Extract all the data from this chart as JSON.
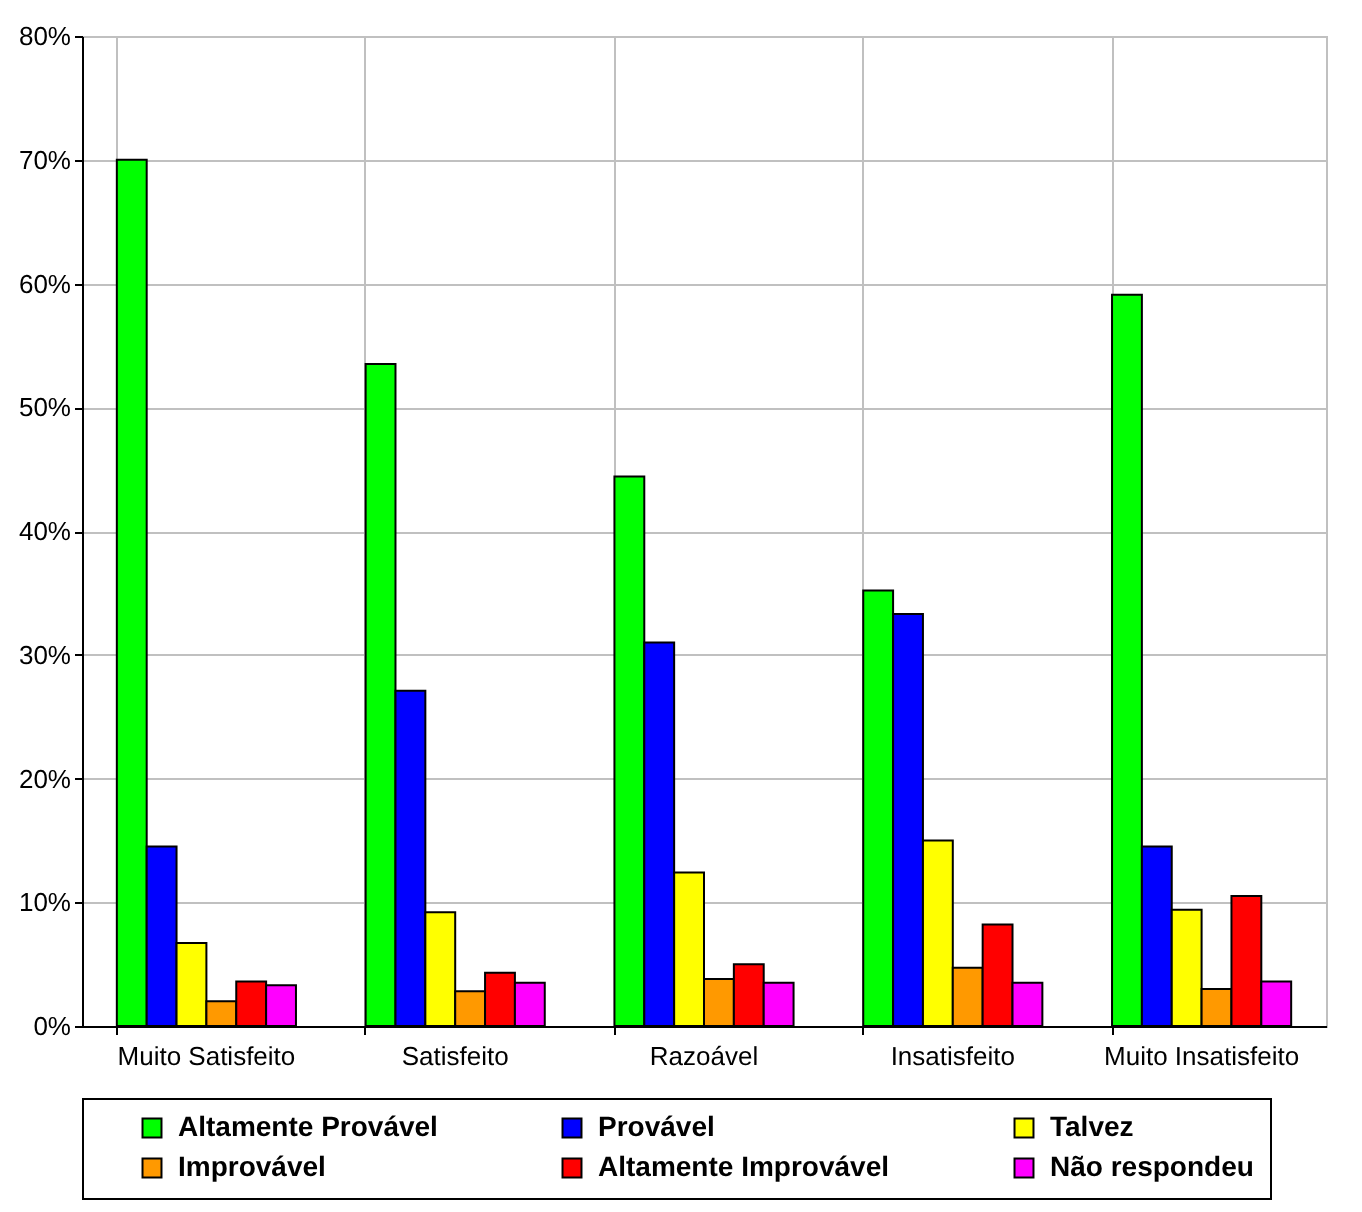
{
  "chart_data": {
    "type": "bar",
    "categories": [
      "Muito Satisfeito",
      "Satisfeito",
      "Razoável",
      "Insatisfeito",
      "Muito Insatisfeito"
    ],
    "series": [
      {
        "name": "Altamente Provável",
        "color": "#00ff00",
        "values": [
          70,
          53.5,
          44.4,
          35.2,
          59.1
        ]
      },
      {
        "name": "Provável",
        "color": "#0000ff",
        "values": [
          14.5,
          27.1,
          31,
          33.3,
          14.5
        ]
      },
      {
        "name": "Talvez",
        "color": "#ffff00",
        "values": [
          6.7,
          9.2,
          12.4,
          15,
          9.4
        ]
      },
      {
        "name": "Improvável",
        "color": "#ff9900",
        "values": [
          2,
          2.8,
          3.8,
          4.7,
          3
        ]
      },
      {
        "name": "Altamente Improvável",
        "color": "#ff0000",
        "values": [
          3.6,
          4.3,
          5,
          8.2,
          10.5
        ]
      },
      {
        "name": "Não respondeu",
        "color": "#ff00ff",
        "values": [
          3.3,
          3.5,
          3.5,
          3.5,
          3.6
        ]
      }
    ],
    "ylim": [
      0,
      80
    ],
    "yticks": [
      {
        "value": 0,
        "label": "0%"
      },
      {
        "value": 10,
        "label": "10%"
      },
      {
        "value": 20,
        "label": "20%"
      },
      {
        "value": 30,
        "label": "30%"
      },
      {
        "value": 40,
        "label": "40%"
      },
      {
        "value": 50,
        "label": "50%"
      },
      {
        "value": 60,
        "label": "60%"
      },
      {
        "value": 70,
        "label": "70%"
      },
      {
        "value": 80,
        "label": "80%"
      }
    ],
    "grid": true,
    "legend": "bottom"
  }
}
